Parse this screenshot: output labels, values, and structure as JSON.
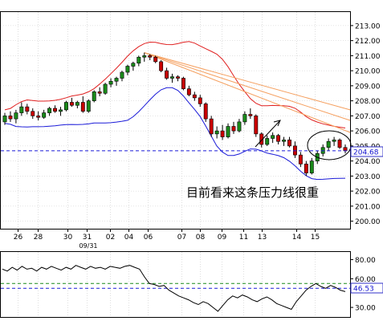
{
  "chart_data": [
    {
      "type": "candlestick",
      "title": "",
      "xlabel": "",
      "ylabel": "",
      "ylim": [
        199.5,
        213.9
      ],
      "y_ticks": [
        200,
        201,
        202,
        203,
        204,
        205,
        206,
        207,
        208,
        209,
        210,
        211,
        212,
        213
      ],
      "y_tick_labels": [
        "200.00",
        "201.00",
        "202.00",
        "203.00",
        "204.00",
        "205.00",
        "206.00",
        "207.00",
        "208.00",
        "209.00",
        "210.00",
        "211.00",
        "212.00",
        "213.00"
      ],
      "x_tick_labels": [
        "26",
        "28",
        "30",
        "31",
        "02",
        "04",
        "06",
        "07",
        "08",
        "09",
        "11",
        "13",
        "14",
        "15"
      ],
      "x_sublabel": "09/31",
      "current_price_label": "204.68",
      "current_price": 204.68,
      "grid": true,
      "annotation": "目前看来这条压力线很重",
      "ohlc": [
        [
          206.6,
          207.2,
          206.4,
          207.0
        ],
        [
          207.0,
          207.3,
          206.6,
          206.8
        ],
        [
          206.8,
          207.4,
          206.5,
          207.2
        ],
        [
          207.2,
          207.9,
          207.0,
          207.6
        ],
        [
          207.6,
          207.8,
          207.1,
          207.3
        ],
        [
          207.3,
          207.5,
          206.8,
          207.0
        ],
        [
          207.0,
          207.3,
          206.7,
          206.9
        ],
        [
          206.9,
          207.4,
          206.8,
          207.2
        ],
        [
          207.2,
          207.6,
          207.0,
          207.5
        ],
        [
          207.5,
          207.7,
          207.2,
          207.3
        ],
        [
          207.3,
          207.6,
          207.0,
          207.4
        ],
        [
          207.4,
          208.0,
          207.3,
          207.9
        ],
        [
          207.9,
          208.2,
          207.6,
          207.7
        ],
        [
          207.7,
          208.0,
          207.5,
          207.9
        ],
        [
          207.9,
          208.3,
          207.2,
          207.3
        ],
        [
          207.3,
          208.1,
          207.2,
          208.0
        ],
        [
          208.0,
          208.7,
          207.9,
          208.6
        ],
        [
          208.6,
          208.9,
          208.3,
          208.5
        ],
        [
          208.5,
          209.2,
          208.4,
          209.1
        ],
        [
          209.1,
          209.5,
          208.9,
          209.3
        ],
        [
          209.3,
          209.6,
          209.0,
          209.5
        ],
        [
          209.5,
          210.0,
          209.3,
          209.9
        ],
        [
          209.9,
          210.4,
          209.7,
          210.3
        ],
        [
          210.3,
          210.6,
          210.0,
          210.5
        ],
        [
          210.5,
          211.0,
          210.3,
          210.9
        ],
        [
          210.9,
          211.2,
          210.6,
          211.0
        ],
        [
          211.0,
          211.1,
          210.7,
          210.9
        ],
        [
          210.9,
          211.0,
          210.5,
          210.6
        ],
        [
          210.6,
          210.7,
          209.9,
          210.0
        ],
        [
          210.0,
          210.2,
          209.4,
          209.5
        ],
        [
          209.5,
          209.8,
          209.2,
          209.6
        ],
        [
          209.6,
          209.7,
          209.3,
          209.5
        ],
        [
          209.5,
          209.6,
          208.7,
          208.8
        ],
        [
          208.8,
          209.0,
          208.3,
          208.4
        ],
        [
          208.4,
          208.6,
          208.0,
          208.2
        ],
        [
          208.2,
          208.4,
          207.6,
          207.8
        ],
        [
          207.8,
          207.9,
          206.6,
          206.8
        ],
        [
          206.8,
          207.0,
          205.6,
          205.8
        ],
        [
          205.8,
          206.3,
          205.5,
          206.0
        ],
        [
          206.0,
          206.4,
          205.4,
          205.6
        ],
        [
          205.6,
          206.5,
          205.5,
          206.3
        ],
        [
          206.3,
          206.6,
          205.8,
          206.0
        ],
        [
          206.0,
          206.8,
          205.9,
          206.6
        ],
        [
          206.6,
          207.3,
          206.4,
          207.1
        ],
        [
          207.1,
          207.5,
          206.8,
          207.0
        ],
        [
          207.0,
          207.1,
          205.6,
          205.8
        ],
        [
          205.8,
          205.9,
          204.9,
          205.1
        ],
        [
          205.1,
          205.7,
          205.0,
          205.5
        ],
        [
          205.5,
          205.9,
          205.2,
          205.7
        ],
        [
          205.7,
          205.8,
          205.1,
          205.3
        ],
        [
          205.3,
          205.6,
          205.0,
          205.4
        ],
        [
          205.4,
          205.6,
          204.9,
          205.0
        ],
        [
          205.0,
          205.3,
          204.2,
          204.4
        ],
        [
          204.4,
          204.6,
          203.6,
          203.8
        ],
        [
          203.8,
          204.0,
          203.0,
          203.2
        ],
        [
          203.2,
          204.2,
          203.1,
          204.0
        ],
        [
          204.0,
          204.7,
          203.8,
          204.5
        ],
        [
          204.5,
          205.1,
          204.3,
          204.9
        ],
        [
          204.9,
          205.5,
          204.7,
          205.3
        ],
        [
          205.3,
          205.6,
          205.0,
          205.4
        ],
        [
          205.4,
          205.5,
          204.8,
          204.9
        ],
        [
          204.9,
          205.1,
          204.5,
          204.68
        ]
      ]
    },
    {
      "type": "line",
      "title": "",
      "ylim": [
        20,
        88
      ],
      "y_tick_labels": [
        "80.00",
        "60.00",
        "30.00"
      ],
      "y_ticks": [
        80,
        60,
        30
      ],
      "current_value_label": "46.53",
      "reference_levels": [
        50,
        55
      ],
      "values": [
        70,
        68,
        72,
        69,
        73,
        70,
        71,
        68,
        72,
        70,
        73,
        71,
        69,
        72,
        70,
        74,
        72,
        70,
        73,
        71,
        72,
        70,
        73,
        72,
        71,
        73,
        74,
        72,
        70,
        62,
        55,
        54,
        52,
        53,
        48,
        45,
        42,
        40,
        38,
        35,
        33,
        36,
        34,
        30,
        26,
        32,
        38,
        42,
        40,
        43,
        41,
        38,
        36,
        39,
        41,
        38,
        34,
        32,
        30,
        28,
        36,
        42,
        48,
        52,
        55,
        52,
        50,
        53,
        51,
        48,
        46.53
      ]
    }
  ]
}
